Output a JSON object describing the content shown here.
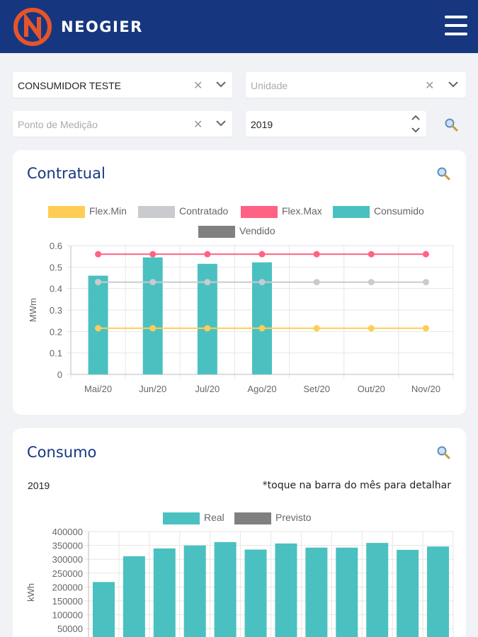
{
  "header": {
    "brand": "NEOGIER",
    "logo_icon": "neogier-logo-icon",
    "menu_icon": "hamburger-menu-icon"
  },
  "filters": {
    "cliente": {
      "value": "CONSUMIDOR TESTE"
    },
    "unidade": {
      "placeholder": "Unidade"
    },
    "ponto": {
      "placeholder": "Ponto de Medição"
    },
    "ano": {
      "value": "2019"
    }
  },
  "contratual": {
    "title": "Contratual",
    "chart_data": {
      "type": "bar",
      "categories": [
        "Mai/20",
        "Jun/20",
        "Jul/20",
        "Ago/20",
        "Set/20",
        "Out/20",
        "Nov/20"
      ],
      "series": [
        {
          "name": "Flex.Min",
          "type": "line",
          "color": "#ffcd56",
          "values": [
            0.215,
            0.215,
            0.215,
            0.215,
            0.215,
            0.215,
            0.215
          ]
        },
        {
          "name": "Contratado",
          "type": "line",
          "color": "#c9cbcf",
          "values": [
            0.43,
            0.43,
            0.43,
            0.43,
            0.43,
            0.43,
            0.43
          ]
        },
        {
          "name": "Flex.Max",
          "type": "line",
          "color": "#ff6384",
          "values": [
            0.56,
            0.56,
            0.56,
            0.56,
            0.56,
            0.56,
            0.56
          ]
        },
        {
          "name": "Consumido",
          "type": "bar",
          "color": "#4bc0c0",
          "values": [
            0.46,
            0.545,
            0.515,
            0.522,
            null,
            null,
            null
          ]
        },
        {
          "name": "Vendido",
          "type": "bar",
          "color": "#808080",
          "values": [
            null,
            null,
            null,
            null,
            null,
            null,
            null
          ]
        }
      ],
      "ylabel": "MWm",
      "ylim": [
        0,
        0.6
      ],
      "yticks": [
        "0",
        "0.1",
        "0.2",
        "0.3",
        "0.4",
        "0.5",
        "0.6"
      ],
      "legend": "top",
      "grid": true
    }
  },
  "consumo": {
    "title": "Consumo",
    "year": "2019",
    "hint": "*toque na barra do mês para detalhar",
    "chart_data": {
      "type": "bar",
      "series": [
        {
          "name": "Real",
          "color": "#4bc0c0",
          "values": [
            218000,
            311000,
            339000,
            350000,
            362000,
            335000,
            357000,
            342000,
            342000,
            359000,
            334000,
            346000
          ]
        },
        {
          "name": "Previsto",
          "color": "#808080",
          "values": []
        }
      ],
      "ylabel": "kWh",
      "ylim": [
        0,
        400000
      ],
      "yticks": [
        "400000",
        "350000",
        "300000",
        "250000",
        "200000",
        "150000",
        "100000",
        "50000"
      ],
      "legend": "top",
      "grid": true
    }
  }
}
